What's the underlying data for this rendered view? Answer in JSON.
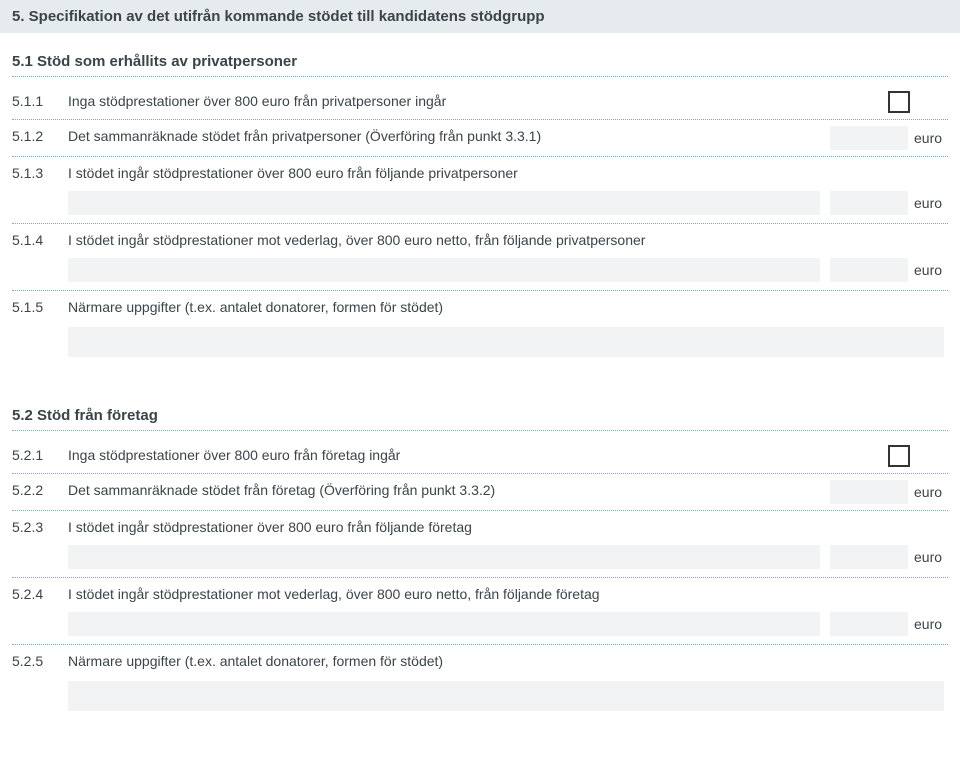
{
  "header": {
    "title": "5. Specifikation av det utifrån kommande stödet till kandidatens stödgrupp"
  },
  "currency_label": "euro",
  "section51": {
    "heading": "5.1 Stöd som erhållits av privatpersoner",
    "items": {
      "i1": {
        "num": "5.1.1",
        "label": "Inga stödprestationer över 800 euro från privatpersoner ingår"
      },
      "i2": {
        "num": "5.1.2",
        "label": "Det sammanräknade stödet från privatpersoner (Överföring från punkt 3.3.1)"
      },
      "i3": {
        "num": "5.1.3",
        "label": "I stödet ingår stödprestationer över 800 euro från följande privatpersoner"
      },
      "i4": {
        "num": "5.1.4",
        "label": "I stödet ingår stödprestationer mot vederlag, över 800 euro netto, från följande privatpersoner"
      },
      "i5": {
        "num": "5.1.5",
        "label": "Närmare uppgifter (t.ex. antalet donatorer, formen för stödet)"
      }
    }
  },
  "section52": {
    "heading": "5.2 Stöd från företag",
    "items": {
      "i1": {
        "num": "5.2.1",
        "label": "Inga stödprestationer över 800 euro från företag ingår"
      },
      "i2": {
        "num": "5.2.2",
        "label": "Det sammanräknade stödet från företag (Överföring från punkt 3.3.2)"
      },
      "i3": {
        "num": "5.2.3",
        "label": "I stödet ingår stödprestationer över 800 euro från följande företag"
      },
      "i4": {
        "num": "5.2.4",
        "label": "I stödet ingår stödprestationer mot vederlag, över 800 euro netto, från följande företag"
      },
      "i5": {
        "num": "5.2.5",
        "label": "Närmare uppgifter (t.ex. antalet donatorer, formen för stödet)"
      }
    }
  }
}
